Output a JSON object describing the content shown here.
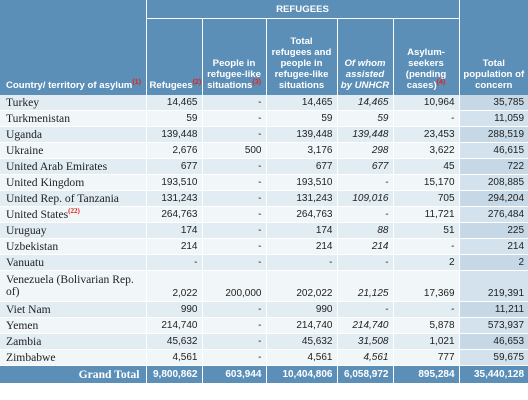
{
  "header": {
    "group_label": "REFUGEES",
    "columns": [
      {
        "text": "Country/ territory of asylum",
        "fn": "(1)"
      },
      {
        "text": "Refugees",
        "fn": "(2)"
      },
      {
        "text": "People in refugee-like situations",
        "fn": "(3)"
      },
      {
        "text": "Total refugees and people in refugee-like situations",
        "fn": ""
      },
      {
        "text": "Of whom assisted by UNHCR",
        "fn": ""
      },
      {
        "text": "Asylum-seekers (pending cases)",
        "fn": "(4)"
      },
      {
        "text": "Total population of concern",
        "fn": ""
      }
    ]
  },
  "rows": [
    {
      "country": "Turkey",
      "fn": "",
      "values": [
        "14,465",
        "-",
        "14,465",
        "14,465",
        "10,964",
        "35,785"
      ]
    },
    {
      "country": "Turkmenistan",
      "fn": "",
      "values": [
        "59",
        "-",
        "59",
        "59",
        "-",
        "11,059"
      ]
    },
    {
      "country": "Uganda",
      "fn": "",
      "values": [
        "139,448",
        "-",
        "139,448",
        "139,448",
        "23,453",
        "288,519"
      ]
    },
    {
      "country": "Ukraine",
      "fn": "",
      "values": [
        "2,676",
        "500",
        "3,176",
        "298",
        "3,622",
        "46,615"
      ]
    },
    {
      "country": "United Arab Emirates",
      "fn": "",
      "values": [
        "677",
        "-",
        "677",
        "677",
        "45",
        "722"
      ]
    },
    {
      "country": "United Kingdom",
      "fn": "",
      "values": [
        "193,510",
        "-",
        "193,510",
        "-",
        "15,170",
        "208,885"
      ]
    },
    {
      "country": "United Rep. of Tanzania",
      "fn": "",
      "values": [
        "131,243",
        "-",
        "131,243",
        "109,016",
        "705",
        "294,204"
      ]
    },
    {
      "country": "United States",
      "fn": "(22)",
      "values": [
        "264,763",
        "-",
        "264,763",
        "-",
        "11,721",
        "276,484"
      ]
    },
    {
      "country": "Uruguay",
      "fn": "",
      "values": [
        "174",
        "-",
        "174",
        "88",
        "51",
        "225"
      ]
    },
    {
      "country": "Uzbekistan",
      "fn": "",
      "values": [
        "214",
        "-",
        "214",
        "214",
        "-",
        "214"
      ]
    },
    {
      "country": "Vanuatu",
      "fn": "",
      "values": [
        "-",
        "-",
        "-",
        "-",
        "2",
        "2"
      ]
    },
    {
      "country": "Venezuela (Bolivarian Rep. of)",
      "fn": "",
      "values": [
        "2,022",
        "200,000",
        "202,022",
        "21,125",
        "17,369",
        "219,391"
      ]
    },
    {
      "country": "Viet Nam",
      "fn": "",
      "values": [
        "990",
        "-",
        "990",
        "-",
        "-",
        "11,211"
      ]
    },
    {
      "country": "Yemen",
      "fn": "",
      "values": [
        "214,740",
        "-",
        "214,740",
        "214,740",
        "5,878",
        "573,937"
      ]
    },
    {
      "country": "Zambia",
      "fn": "",
      "values": [
        "45,632",
        "-",
        "45,632",
        "31,508",
        "1,021",
        "46,653"
      ]
    },
    {
      "country": "Zimbabwe",
      "fn": "",
      "values": [
        "4,561",
        "-",
        "4,561",
        "4,561",
        "777",
        "59,675"
      ]
    }
  ],
  "grand_total": {
    "label": "Grand Total",
    "values": [
      "9,800,862",
      "603,944",
      "10,404,806",
      "6,058,972",
      "895,284",
      "35,440,128"
    ]
  },
  "colors": {
    "header_bg": "#5b8fb8",
    "row_light": "#f1f6f9",
    "row_dark": "#e2ecf3",
    "total_col_light": "#d3e2ec",
    "total_col_dark": "#c6d8e6",
    "footnote": "#e2231a"
  }
}
